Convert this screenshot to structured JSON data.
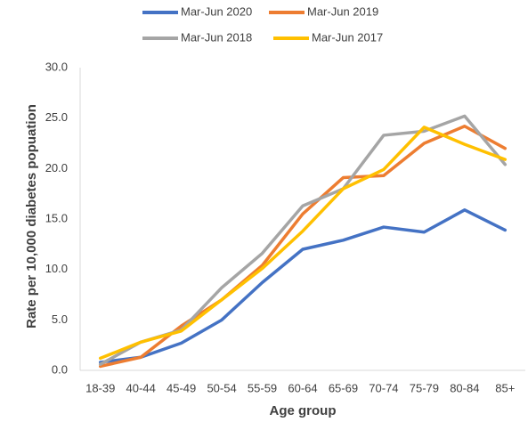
{
  "chart_data": {
    "type": "line",
    "x_label": "Age group",
    "y_label": "Rate per 10,000 diabetes popuation",
    "categories": [
      "18-39",
      "40-44",
      "45-49",
      "50-54",
      "55-59",
      "60-64",
      "65-69",
      "70-74",
      "75-79",
      "80-84",
      "85+"
    ],
    "series": [
      {
        "name": "Mar-Jun 2020",
        "color": "#4472c4",
        "values": [
          0.8,
          1.3,
          2.7,
          5.0,
          8.7,
          12.0,
          12.9,
          14.2,
          13.7,
          15.9,
          13.9
        ]
      },
      {
        "name": "Mar-Jun 2019",
        "color": "#ed7d31",
        "values": [
          0.4,
          1.3,
          4.4,
          7.0,
          10.4,
          15.5,
          19.1,
          19.3,
          22.5,
          24.2,
          22.0
        ]
      },
      {
        "name": "Mar-Jun 2018",
        "color": "#a5a5a5",
        "values": [
          0.6,
          2.8,
          4.0,
          8.2,
          11.6,
          16.3,
          18.0,
          23.3,
          23.7,
          25.2,
          20.4
        ]
      },
      {
        "name": "Mar-Jun 2017",
        "color": "#ffc000",
        "values": [
          1.2,
          2.8,
          3.9,
          7.0,
          10.1,
          13.8,
          18.0,
          19.9,
          24.1,
          22.4,
          20.9
        ]
      }
    ],
    "ylim": [
      0,
      30
    ],
    "yticks": [
      {
        "value": 0,
        "label": "0.0"
      },
      {
        "value": 5,
        "label": "5.0"
      },
      {
        "value": 10,
        "label": "10.0"
      },
      {
        "value": 15,
        "label": "15.0"
      },
      {
        "value": 20,
        "label": "20.0"
      },
      {
        "value": 25,
        "label": "25.0"
      },
      {
        "value": 30,
        "label": "30.0"
      }
    ],
    "grid": false
  }
}
